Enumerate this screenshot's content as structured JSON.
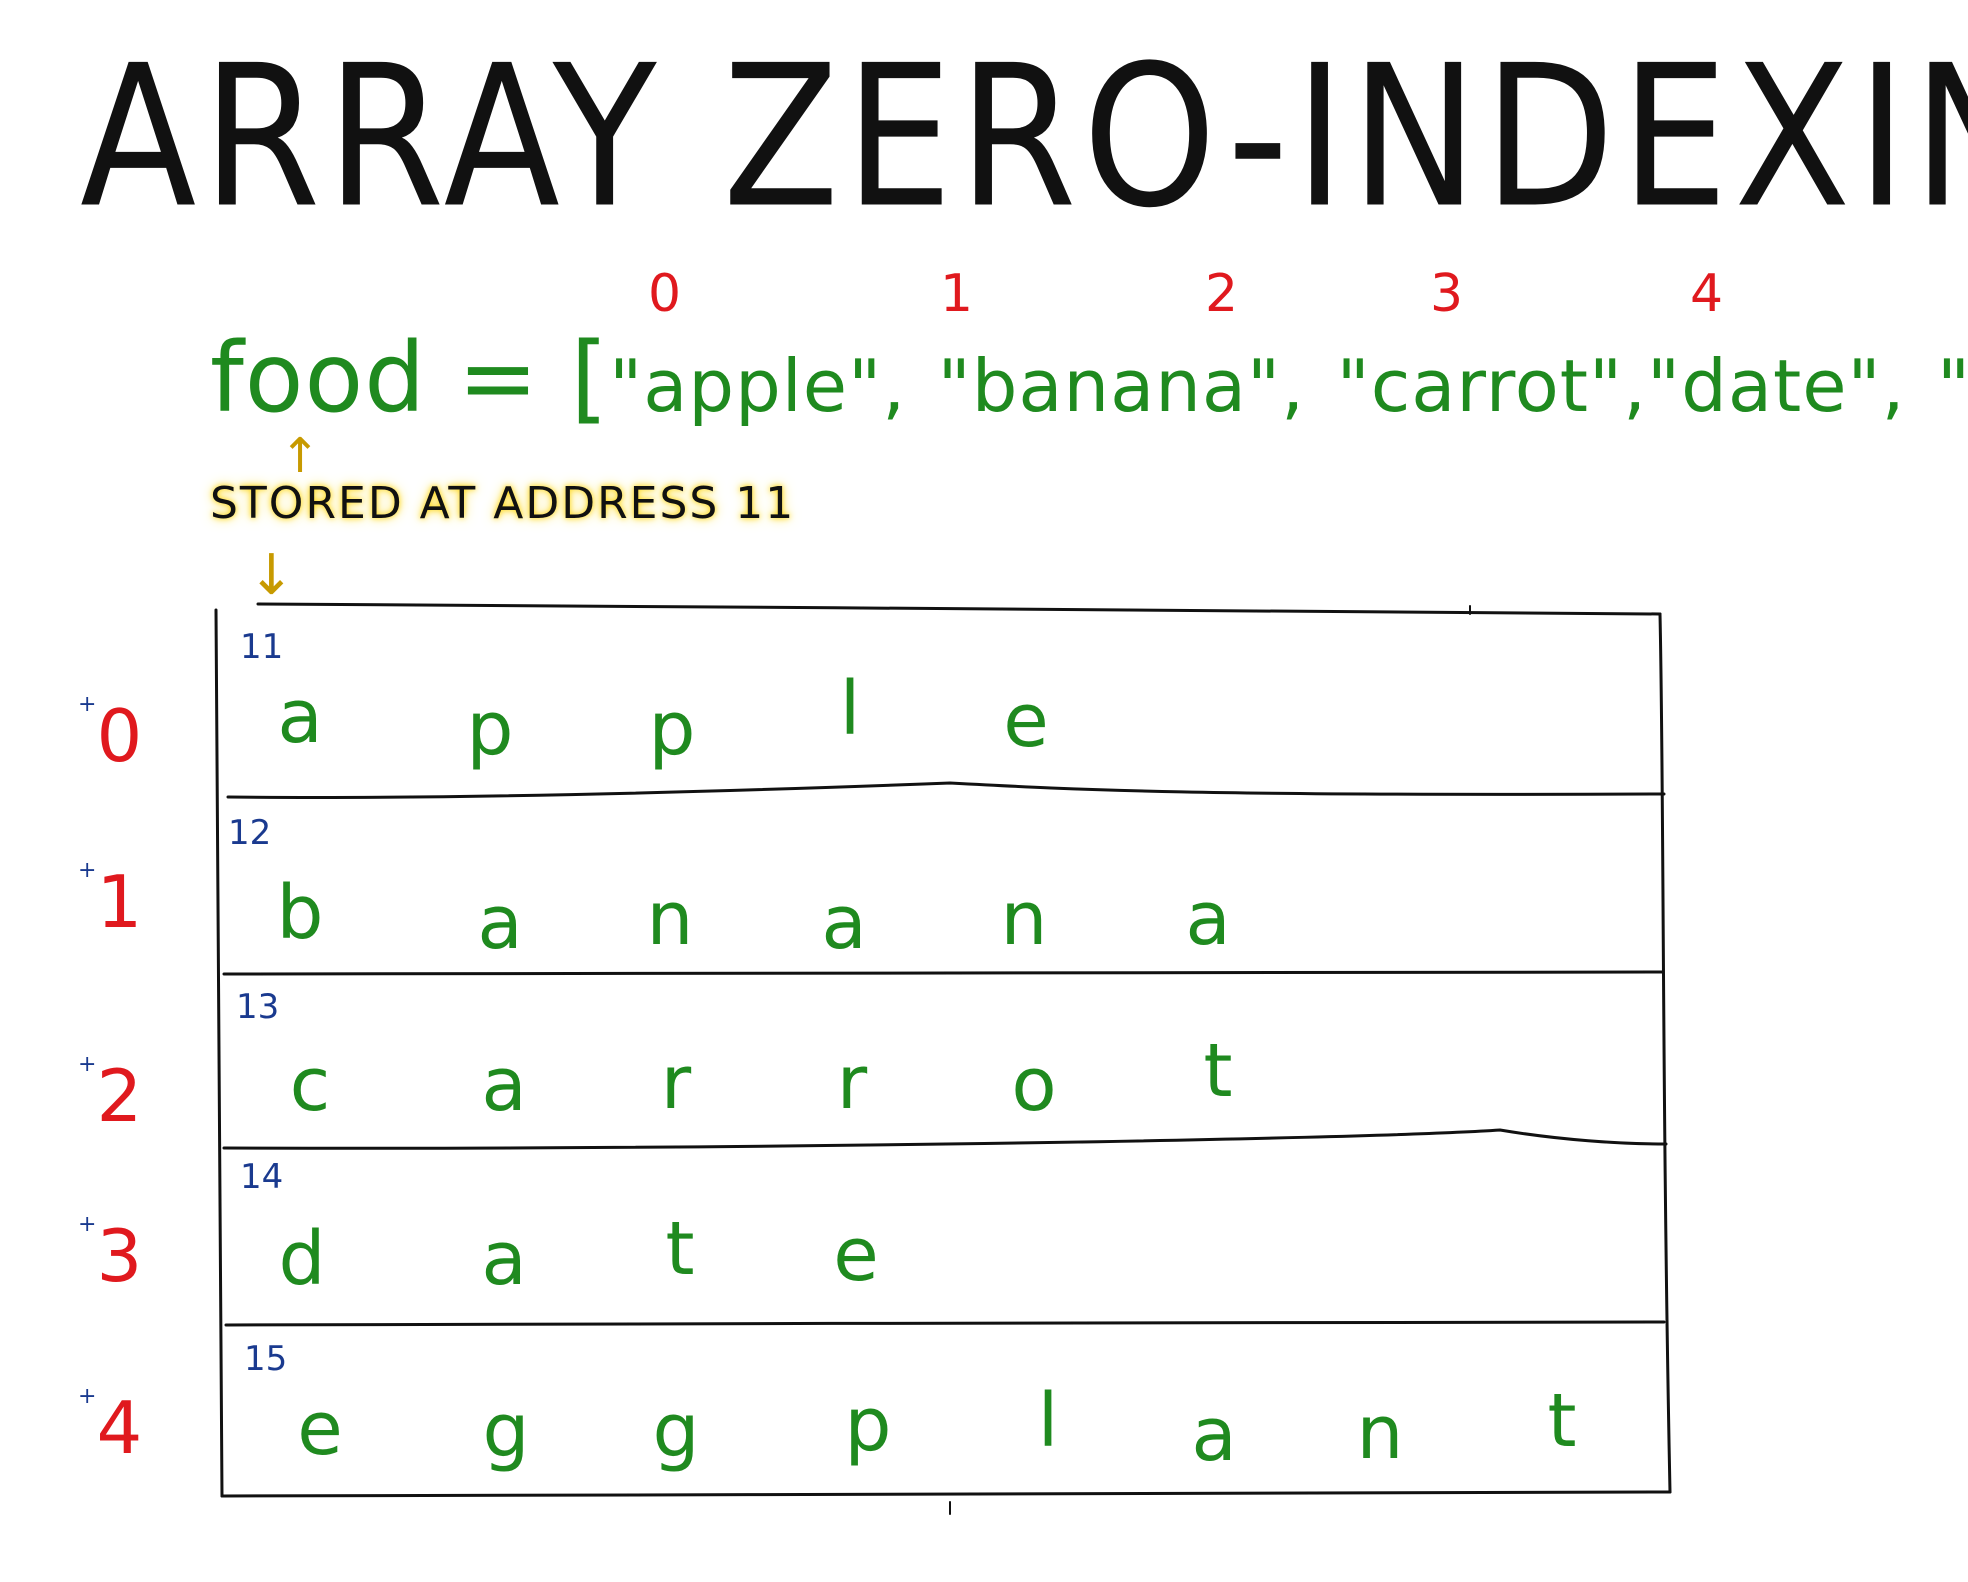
{
  "title": "ARRAY ZERO-INDEXING",
  "colors": {
    "index_red": "#e0191e",
    "data_green": "#1f8a1f",
    "address_blue": "#1a3a8f",
    "highlight_yellow": "#ffd400",
    "ink": "#111111"
  },
  "declaration": {
    "name": "food",
    "equals": "=",
    "open_bracket": "[",
    "close_bracket": "]",
    "separator": ",",
    "items": [
      "\"apple\"",
      "\"banana\"",
      "\"carrot\"",
      "\"date\"",
      "\"eggplant\""
    ],
    "item_indices": [
      "0",
      "1",
      "2",
      "3",
      "4"
    ]
  },
  "note": "STORED AT ADDRESS 11",
  "arrows": {
    "up": "↑",
    "down": "↓"
  },
  "rows": [
    {
      "offset_sign": "+",
      "offset": "0",
      "address": "11",
      "chars": [
        "a",
        "p",
        "p",
        "l",
        "e"
      ]
    },
    {
      "offset_sign": "+",
      "offset": "1",
      "address": "12",
      "chars": [
        "b",
        "a",
        "n",
        "a",
        "n",
        "a"
      ]
    },
    {
      "offset_sign": "+",
      "offset": "2",
      "address": "13",
      "chars": [
        "c",
        "a",
        "r",
        "r",
        "o",
        "t"
      ]
    },
    {
      "offset_sign": "+",
      "offset": "3",
      "address": "14",
      "chars": [
        "d",
        "a",
        "t",
        "e"
      ]
    },
    {
      "offset_sign": "+",
      "offset": "4",
      "address": "15",
      "chars": [
        "e",
        "g",
        "g",
        "p",
        "l",
        "a",
        "n",
        "t"
      ]
    }
  ]
}
